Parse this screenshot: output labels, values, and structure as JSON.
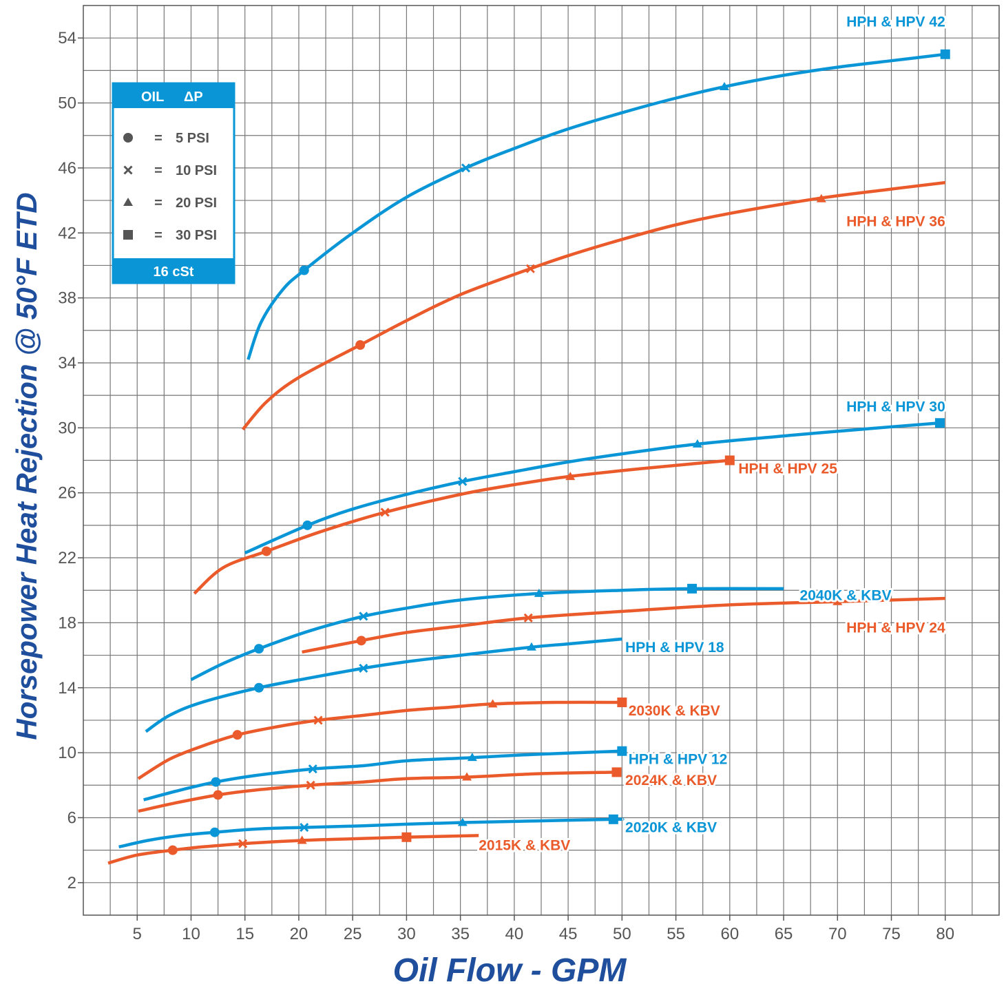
{
  "chart_data": {
    "type": "line",
    "xlabel": "Oil Flow - GPM",
    "ylabel": "Horsepower  Heat  Rejection  @  50°F   ETD",
    "xlim": [
      0,
      85
    ],
    "ylim": [
      0,
      56
    ],
    "x_ticks": [
      5,
      10,
      15,
      20,
      25,
      30,
      35,
      40,
      45,
      50,
      55,
      60,
      65,
      70,
      75,
      80
    ],
    "y_ticks": [
      2,
      6,
      10,
      14,
      18,
      22,
      26,
      30,
      34,
      38,
      42,
      46,
      50,
      54
    ],
    "grid": true,
    "colors": {
      "blue": "#0a96d6",
      "red": "#ea5a2a",
      "grid": "#777777",
      "axis_title": "#1f4e9c"
    },
    "legend": {
      "header": [
        "OIL",
        "ΔP"
      ],
      "items": [
        {
          "marker": "circle",
          "eq": "=",
          "label": "5 PSI"
        },
        {
          "marker": "x",
          "eq": "=",
          "label": "10 PSI"
        },
        {
          "marker": "triangle",
          "eq": "=",
          "label": "20 PSI"
        },
        {
          "marker": "square",
          "eq": "=",
          "label": "30 PSI"
        }
      ],
      "footer": "16  cSt",
      "placement": "top-left"
    },
    "series": [
      {
        "name": "HPH & HPV 42",
        "color": "blue",
        "x": [
          15.3,
          16.5,
          18.5,
          20.5,
          25,
          30,
          35.5,
          40,
          45,
          50,
          55,
          59.5,
          65,
          70,
          75,
          80
        ],
        "y": [
          34.2,
          36.5,
          38.5,
          39.7,
          42.0,
          44.2,
          46.0,
          47.2,
          48.4,
          49.4,
          50.3,
          51.0,
          51.7,
          52.2,
          52.6,
          53.0
        ],
        "markers": [
          {
            "x": 20.5,
            "y": 39.7,
            "m": "circle"
          },
          {
            "x": 35.5,
            "y": 46.0,
            "m": "x"
          },
          {
            "x": 59.5,
            "y": 51.0,
            "m": "triangle"
          },
          {
            "x": 80,
            "y": 53.0,
            "m": "square"
          }
        ],
        "label_at": [
          80,
          55.0
        ],
        "anchor": "end"
      },
      {
        "name": "HPH & HPV 36",
        "color": "red",
        "x": [
          14.8,
          17,
          20,
          25.7,
          30,
          35,
          41.5,
          45,
          50,
          55,
          60,
          68,
          75,
          80
        ],
        "y": [
          29.9,
          31.6,
          33.1,
          35.1,
          36.6,
          38.2,
          39.8,
          40.6,
          41.6,
          42.5,
          43.2,
          44.1,
          44.7,
          45.1
        ],
        "markers": [
          {
            "x": 25.7,
            "y": 35.1,
            "m": "circle"
          },
          {
            "x": 41.5,
            "y": 39.8,
            "m": "x"
          },
          {
            "x": 68.5,
            "y": 44.1,
            "m": "triangle"
          }
        ],
        "label_at": [
          80,
          42.7
        ],
        "anchor": "end"
      },
      {
        "name": "HPH & HPV 30",
        "color": "blue",
        "x": [
          15,
          20.8,
          25,
          30,
          35.2,
          40,
          45,
          50,
          57,
          65,
          72,
          79.5
        ],
        "y": [
          22.3,
          24.0,
          25.0,
          25.9,
          26.7,
          27.3,
          27.9,
          28.4,
          29.0,
          29.5,
          29.9,
          30.3
        ],
        "markers": [
          {
            "x": 20.8,
            "y": 24.0,
            "m": "circle"
          },
          {
            "x": 35.2,
            "y": 26.7,
            "m": "x"
          },
          {
            "x": 57,
            "y": 29.0,
            "m": "triangle"
          },
          {
            "x": 79.5,
            "y": 30.3,
            "m": "square"
          }
        ],
        "label_at": [
          80,
          31.3
        ],
        "anchor": "end"
      },
      {
        "name": "HPH & HPV 25",
        "color": "red",
        "x": [
          10.3,
          13,
          17,
          22,
          28,
          35,
          40,
          45,
          52,
          60
        ],
        "y": [
          19.8,
          21.4,
          22.4,
          23.6,
          24.8,
          25.9,
          26.5,
          27.0,
          27.5,
          28.0
        ],
        "markers": [
          {
            "x": 17,
            "y": 22.4,
            "m": "circle"
          },
          {
            "x": 28,
            "y": 24.8,
            "m": "x"
          },
          {
            "x": 45.2,
            "y": 27.0,
            "m": "triangle"
          },
          {
            "x": 60,
            "y": 28.0,
            "m": "square"
          }
        ],
        "label_at": [
          60.8,
          27.5
        ],
        "anchor": "start"
      },
      {
        "name": "2040K & KBV",
        "color": "blue",
        "x": [
          10,
          13,
          16.3,
          21,
          26,
          30,
          35,
          42.3,
          50,
          56.5,
          65
        ],
        "y": [
          14.5,
          15.5,
          16.4,
          17.5,
          18.4,
          18.9,
          19.4,
          19.8,
          20.0,
          20.1,
          20.1
        ],
        "markers": [
          {
            "x": 16.3,
            "y": 16.4,
            "m": "circle"
          },
          {
            "x": 26,
            "y": 18.4,
            "m": "x"
          },
          {
            "x": 42.3,
            "y": 19.8,
            "m": "triangle"
          },
          {
            "x": 56.5,
            "y": 20.1,
            "m": "square"
          }
        ],
        "label_at": [
          66.5,
          19.7
        ],
        "anchor": "start"
      },
      {
        "name": "HPH & HPV 24",
        "color": "red",
        "x": [
          20.3,
          25.8,
          30,
          35,
          41.3,
          50,
          60,
          70,
          80
        ],
        "y": [
          16.2,
          16.9,
          17.4,
          17.8,
          18.3,
          18.7,
          19.1,
          19.3,
          19.5
        ],
        "markers": [
          {
            "x": 25.8,
            "y": 16.9,
            "m": "circle"
          },
          {
            "x": 41.3,
            "y": 18.3,
            "m": "x"
          },
          {
            "x": 70,
            "y": 19.3,
            "m": "triangle"
          }
        ],
        "label_at": [
          80,
          17.7
        ],
        "anchor": "end"
      },
      {
        "name": "HPH & HPV 18",
        "color": "blue",
        "x": [
          5.8,
          8,
          11,
          16.3,
          21,
          26,
          30,
          35,
          41.6,
          45,
          50
        ],
        "y": [
          11.3,
          12.3,
          13.1,
          14.0,
          14.6,
          15.2,
          15.6,
          16.0,
          16.5,
          16.7,
          17.0
        ],
        "markers": [
          {
            "x": 16.3,
            "y": 14.0,
            "m": "circle"
          },
          {
            "x": 26,
            "y": 15.2,
            "m": "x"
          },
          {
            "x": 41.6,
            "y": 16.5,
            "m": "triangle"
          }
        ],
        "label_at": [
          50.3,
          16.5
        ],
        "anchor": "start"
      },
      {
        "name": "2030K & KBV",
        "color": "red",
        "x": [
          5.1,
          8,
          11,
          14.3,
          18,
          21.8,
          26,
          30,
          34,
          38,
          44,
          50
        ],
        "y": [
          8.4,
          9.6,
          10.4,
          11.1,
          11.6,
          12.0,
          12.3,
          12.6,
          12.8,
          13.0,
          13.1,
          13.1
        ],
        "markers": [
          {
            "x": 14.3,
            "y": 11.1,
            "m": "circle"
          },
          {
            "x": 21.8,
            "y": 12.0,
            "m": "x"
          },
          {
            "x": 38,
            "y": 13.0,
            "m": "triangle"
          },
          {
            "x": 50,
            "y": 13.1,
            "m": "square"
          }
        ],
        "label_at": [
          50.6,
          12.6
        ],
        "anchor": "start"
      },
      {
        "name": "HPH & HPV 12",
        "color": "blue",
        "x": [
          5.6,
          9,
          12.3,
          16,
          21.3,
          26,
          30,
          36.1,
          42,
          50
        ],
        "y": [
          7.1,
          7.7,
          8.2,
          8.6,
          9.0,
          9.2,
          9.5,
          9.7,
          9.9,
          10.1
        ],
        "markers": [
          {
            "x": 12.3,
            "y": 8.2,
            "m": "circle"
          },
          {
            "x": 21.3,
            "y": 9.0,
            "m": "x"
          },
          {
            "x": 36.1,
            "y": 9.7,
            "m": "triangle"
          },
          {
            "x": 50,
            "y": 10.1,
            "m": "square"
          }
        ],
        "label_at": [
          50.6,
          9.6
        ],
        "anchor": "start"
      },
      {
        "name": "2024K & KBV",
        "color": "red",
        "x": [
          5.1,
          8.5,
          12.5,
          16,
          21.1,
          26,
          30,
          35.6,
          42,
          49.5
        ],
        "y": [
          6.4,
          6.9,
          7.4,
          7.7,
          8.0,
          8.2,
          8.4,
          8.5,
          8.7,
          8.8
        ],
        "markers": [
          {
            "x": 12.5,
            "y": 7.4,
            "m": "circle"
          },
          {
            "x": 21.1,
            "y": 8.0,
            "m": "x"
          },
          {
            "x": 35.6,
            "y": 8.5,
            "m": "triangle"
          },
          {
            "x": 49.5,
            "y": 8.8,
            "m": "square"
          }
        ],
        "label_at": [
          50.3,
          8.3
        ],
        "anchor": "start"
      },
      {
        "name": "2020K & KBV",
        "color": "blue",
        "x": [
          3.3,
          6,
          9,
          12.2,
          16,
          20.5,
          26,
          30,
          35.2,
          42,
          49.2,
          50
        ],
        "y": [
          4.2,
          4.6,
          4.9,
          5.1,
          5.3,
          5.4,
          5.5,
          5.6,
          5.7,
          5.8,
          5.9,
          5.9
        ],
        "markers": [
          {
            "x": 12.2,
            "y": 5.1,
            "m": "circle"
          },
          {
            "x": 20.5,
            "y": 5.4,
            "m": "x"
          },
          {
            "x": 35.2,
            "y": 5.7,
            "m": "triangle"
          },
          {
            "x": 49.2,
            "y": 5.9,
            "m": "square"
          }
        ],
        "label_at": [
          50.3,
          5.4
        ],
        "anchor": "start"
      },
      {
        "name": "2015K & KBV",
        "color": "red",
        "x": [
          2.3,
          5,
          8.3,
          11,
          14.8,
          20.3,
          25,
          30,
          36.7
        ],
        "y": [
          3.2,
          3.7,
          4.0,
          4.2,
          4.4,
          4.6,
          4.7,
          4.8,
          4.9
        ],
        "markers": [
          {
            "x": 8.3,
            "y": 4.0,
            "m": "circle"
          },
          {
            "x": 14.8,
            "y": 4.4,
            "m": "x"
          },
          {
            "x": 20.3,
            "y": 4.6,
            "m": "triangle"
          },
          {
            "x": 30,
            "y": 4.8,
            "m": "square"
          }
        ],
        "label_at": [
          36.7,
          4.3
        ],
        "anchor": "start"
      }
    ]
  }
}
